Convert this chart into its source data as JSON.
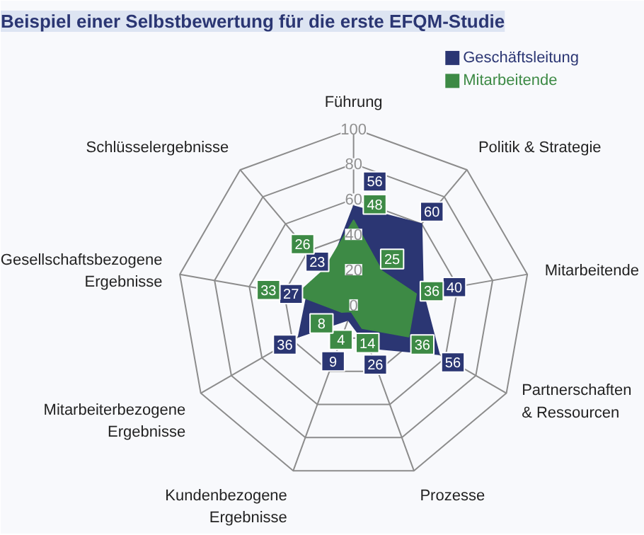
{
  "chart_data": {
    "type": "radar",
    "title": "Beispiel einer Selbstbewertung für die erste EFQM-Studie",
    "categories": [
      "Führung",
      "Politik & Strategie",
      "Mitarbeitende",
      "Partnerschaften\n& Ressourcen",
      "Prozesse",
      "Kundenbezogene\nErgebnisse",
      "Mitarbeiterbezogene\nErgebnisse",
      "Gesellschaftsbezogene\nErgebnisse",
      "Schlüsselergebnisse"
    ],
    "series": [
      {
        "name": "Geschäftsleitung",
        "color": "#2b3673",
        "values": [
          56,
          60,
          40,
          56,
          26,
          9,
          36,
          27,
          23
        ]
      },
      {
        "name": "Mitarbeitende",
        "color": "#3d8a45",
        "values": [
          48,
          25,
          36,
          36,
          14,
          4,
          8,
          33,
          26
        ]
      }
    ],
    "ylim": [
      0,
      100
    ],
    "yticks": [
      0,
      20,
      40,
      60,
      80,
      100
    ],
    "grid": true,
    "legend": "top right",
    "data_labels": true
  }
}
